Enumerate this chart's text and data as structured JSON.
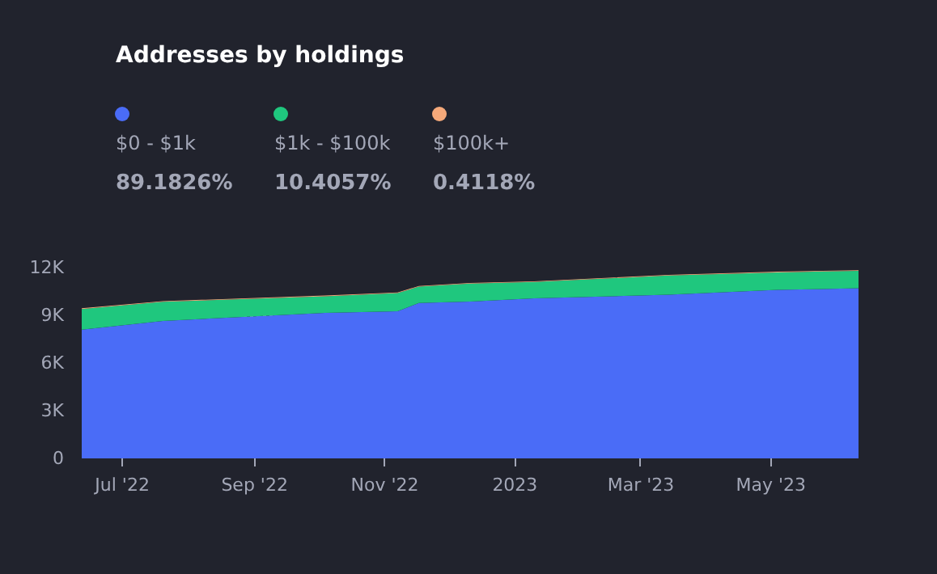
{
  "chart_data": {
    "type": "area",
    "title": "Addresses by holdings",
    "stacked": true,
    "x": [
      "2022-06-12",
      "2022-07-20",
      "2022-10-04",
      "2022-11-07",
      "2022-11-17",
      "2022-12-11",
      "2023-01-10",
      "2023-03-14",
      "2023-05-04",
      "2023-06-11"
    ],
    "series": [
      {
        "name": "$0 - $1k",
        "color": "#4a6cf7",
        "values": [
          8100,
          8650,
          9150,
          9260,
          9770,
          9870,
          10070,
          10300,
          10600,
          10700
        ]
      },
      {
        "name": "$1k - $100k",
        "color": "#1fc77e",
        "values": [
          1300,
          1200,
          1050,
          1140,
          1030,
          1130,
          1030,
          1200,
          1100,
          1100
        ]
      },
      {
        "name": "$100k+",
        "color": "#f5a97a",
        "values": [
          40,
          40,
          40,
          40,
          40,
          40,
          40,
          40,
          40,
          40
        ]
      }
    ],
    "annotations": [
      "89.1826%",
      "10.4057%",
      "0.4118%"
    ],
    "ylim": [
      0,
      12000
    ],
    "yticks": [
      {
        "value": 0,
        "label": "0"
      },
      {
        "value": 3000,
        "label": "3K"
      },
      {
        "value": 6000,
        "label": "6K"
      },
      {
        "value": 9000,
        "label": "9K"
      },
      {
        "value": 12000,
        "label": "12K"
      }
    ],
    "xlim": [
      "2022-06-12",
      "2023-06-11"
    ],
    "xticks": [
      {
        "value": "2022-07-01",
        "label": "Jul '22"
      },
      {
        "value": "2022-09-01",
        "label": "Sep '22"
      },
      {
        "value": "2022-11-01",
        "label": "Nov '22"
      },
      {
        "value": "2023-01-01",
        "label": "2023"
      },
      {
        "value": "2023-03-01",
        "label": "Mar '23"
      },
      {
        "value": "2023-05-01",
        "label": "May '23"
      }
    ],
    "grid": "y",
    "legend": "top left"
  }
}
